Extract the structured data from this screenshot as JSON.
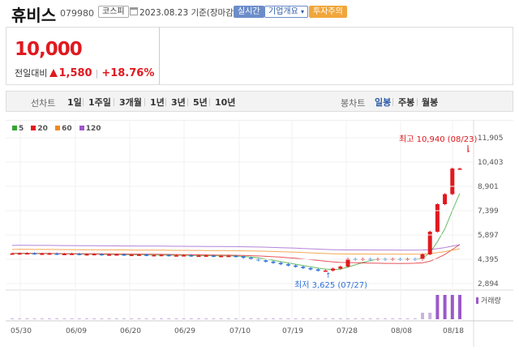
{
  "header": {
    "name": "휴비스",
    "code": "079980",
    "market": "코스피",
    "date": "2023.08.23 기준(장마감)",
    "realtime_label": "실시간",
    "company_label": "기업개요",
    "warning_label": "투자주의"
  },
  "price": {
    "current": "10,000",
    "change_label": "전일대비",
    "change_value": "1,580",
    "change_pct": "+18.76%"
  },
  "tabs": {
    "line_label": "선차트",
    "line_items": [
      "1일",
      "1주일",
      "3개월",
      "1년",
      "3년",
      "5년",
      "10년"
    ],
    "candle_label": "봉차트",
    "candle_items": [
      "일봉",
      "주봉",
      "월봉"
    ],
    "active_candle": "일봉"
  },
  "chart_data": {
    "type": "candlestick",
    "legend": [
      "5",
      "20",
      "60",
      "120"
    ],
    "legend_colors": [
      "#33a532",
      "#e0191f",
      "#f08a1c",
      "#9b59c9"
    ],
    "y_ticks": [
      "11,905",
      "10,403",
      "8,901",
      "7,399",
      "5,897",
      "4,395",
      "2,894"
    ],
    "y_range": [
      2894,
      11905
    ],
    "x_labels": [
      "05/30",
      "06/09",
      "06/20",
      "06/29",
      "07/10",
      "07/19",
      "07/28",
      "08/08",
      "08/18"
    ],
    "high_annotation": "최고 10,940 (08/23)",
    "low_annotation": "최저 3,625 (07/27)",
    "volume_label": "거래량"
  },
  "colors": {
    "up": "#e0191f",
    "down": "#2f72d8",
    "accent": "#2d5ba8",
    "warning": "#f1a63a"
  }
}
